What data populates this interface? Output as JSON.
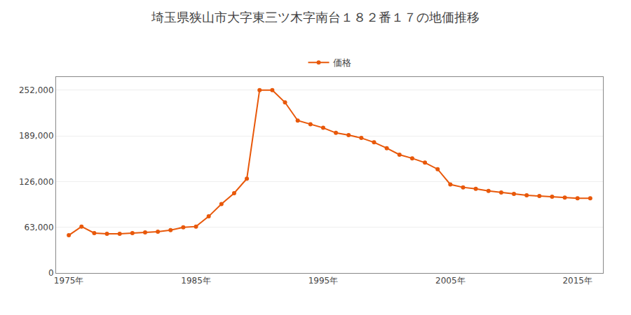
{
  "chart_data": {
    "type": "line",
    "title": "埼玉県狭山市大字東三ツ木字南台１８２番１７の地価推移",
    "series": [
      {
        "name": "価格",
        "color": "#e8580a",
        "marker": "circle",
        "values": [
          52000,
          64000,
          55000,
          54000,
          54000,
          55000,
          56000,
          57000,
          59000,
          63000,
          64000,
          78000,
          95000,
          110000,
          130000,
          252000,
          252000,
          235000,
          210000,
          205000,
          200000,
          193000,
          190000,
          186000,
          180000,
          172000,
          163000,
          158000,
          152000,
          143000,
          122000,
          118000,
          116000,
          113000,
          111000,
          109000,
          107000,
          106000,
          105000,
          104000,
          103000,
          103000
        ]
      }
    ],
    "x": [
      1975,
      1976,
      1977,
      1978,
      1979,
      1980,
      1981,
      1982,
      1983,
      1984,
      1985,
      1986,
      1987,
      1988,
      1989,
      1990,
      1991,
      1992,
      1993,
      1994,
      1995,
      1996,
      1997,
      1998,
      1999,
      2000,
      2001,
      2002,
      2003,
      2004,
      2005,
      2006,
      2007,
      2008,
      2009,
      2010,
      2011,
      2012,
      2013,
      2014,
      2015,
      2016
    ],
    "xlim": [
      1974,
      2017
    ],
    "xticks": [
      {
        "value": 1975,
        "label": "1975年"
      },
      {
        "value": 1985,
        "label": "1985年"
      },
      {
        "value": 1995,
        "label": "1995年"
      },
      {
        "value": 2005,
        "label": "2005年"
      },
      {
        "value": 2015,
        "label": "2015年"
      }
    ],
    "ylim": [
      0,
      270000
    ],
    "yticks": [
      0,
      {
        "value": 63000,
        "label": "63,000"
      },
      {
        "value": 126000,
        "label": "126,000"
      },
      {
        "value": 189000,
        "label": "189,000"
      },
      {
        "value": 252000,
        "label": "252,000"
      }
    ],
    "grid": "y",
    "legend": "top"
  }
}
